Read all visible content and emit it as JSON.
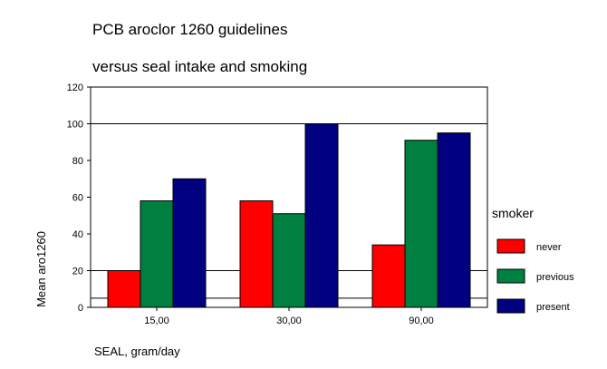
{
  "chart_data": {
    "type": "bar",
    "title": "PCB aroclor 1260 guidelines",
    "subtitle": "versus seal intake and smoking",
    "xlabel": "SEAL, gram/day",
    "ylabel": "Mean aro1260",
    "categories": [
      "15,00",
      "30,00",
      "90,00"
    ],
    "series": [
      {
        "name": "never",
        "color": "#ff0000",
        "values": [
          20,
          58,
          34
        ]
      },
      {
        "name": "previous",
        "color": "#008040",
        "values": [
          58,
          51,
          91
        ]
      },
      {
        "name": "present",
        "color": "#000080",
        "values": [
          70,
          100,
          95
        ]
      }
    ],
    "ylim": [
      0,
      120
    ],
    "yticks": [
      0,
      20,
      40,
      60,
      80,
      100,
      120
    ],
    "reference_lines": [
      5,
      20,
      100
    ],
    "legend": {
      "title": "smoker",
      "position": "right"
    },
    "grid": false
  }
}
